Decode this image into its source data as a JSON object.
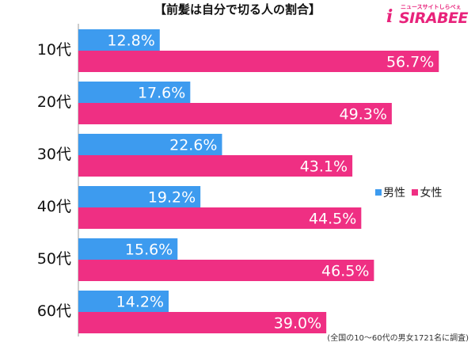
{
  "title": "【前髪は自分で切る人の割合】",
  "logo": {
    "text": "SIRABEE",
    "subtext": "ニュースサイトしらべぇ",
    "mark": "i"
  },
  "footnote": "(全国の10〜60代の男女1721名に調査)",
  "legend": {
    "male": "男性",
    "female": "女性"
  },
  "colors": {
    "male": "#3d9bef",
    "female": "#ef2f83"
  },
  "chart_data": {
    "type": "bar",
    "orientation": "horizontal",
    "title": "【前髪は自分で切る人の割合】",
    "categories": [
      "10代",
      "20代",
      "30代",
      "40代",
      "50代",
      "60代"
    ],
    "series": [
      {
        "name": "男性",
        "values": [
          12.8,
          17.6,
          22.6,
          19.2,
          15.6,
          14.2
        ],
        "labels": [
          "12.8%",
          "17.6%",
          "22.6%",
          "19.2%",
          "15.6%",
          "14.2%"
        ]
      },
      {
        "name": "女性",
        "values": [
          56.7,
          49.3,
          43.1,
          44.5,
          46.5,
          39.0
        ],
        "labels": [
          "56.7%",
          "49.3%",
          "43.1%",
          "44.5%",
          "46.5%",
          "39.0%"
        ]
      }
    ],
    "xlim": [
      0,
      60
    ],
    "grid": false,
    "legend_position": "right"
  }
}
